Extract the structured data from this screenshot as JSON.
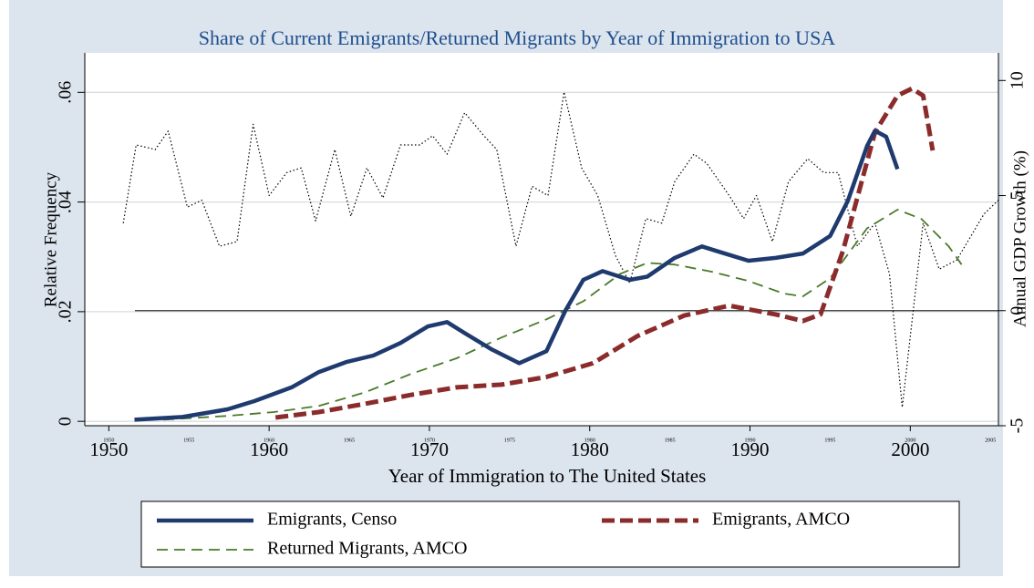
{
  "chart_data": {
    "type": "line",
    "title": "Share of Current Emigrants/Returned Migrants by Year of Immigration to USA",
    "xlabel": "Year of Immigration to The United States",
    "ylabel": "Relative Frequency",
    "y2label": "Annual GDP Growth (%)",
    "xlim": [
      1948.5,
      2005.5
    ],
    "xticks": [
      1950,
      1960,
      1970,
      1980,
      1990,
      2000
    ],
    "xminor_ticks": [
      1950,
      1955,
      1960,
      1965,
      1970,
      1975,
      1980,
      1985,
      1990,
      1995,
      2000,
      2005
    ],
    "ylim": [
      -0.0008,
      0.0672
    ],
    "yticks": [
      0,
      {
        "value": 0.02,
        "label": ".02"
      },
      {
        "value": 0.04,
        "label": ".04"
      },
      {
        "value": 0.06,
        "label": ".06"
      }
    ],
    "y2lim": [
      -5,
      11.2
    ],
    "y2ticks": [
      -5,
      0,
      5,
      10
    ],
    "y2_zero_line": true,
    "grid": true,
    "legend": "bottom",
    "series": [
      {
        "name": "Emigrants, Censo",
        "color": "#1f3a6e",
        "line_style": "solid",
        "x": [
          1951.6,
          1954.6,
          1957.4,
          1959.1,
          1961.4,
          1963.1,
          1964.8,
          1966.5,
          1968.2,
          1969.9,
          1971.1,
          1972.2,
          1973.9,
          1975.6,
          1977.3,
          1978.5,
          1979.6,
          1980.8,
          1982.5,
          1983.6,
          1985.3,
          1987.0,
          1988.1,
          1989.9,
          1991.6,
          1993.3,
          1995.0,
          1996.1,
          1997.3,
          1997.8,
          1998.5,
          1999.2
        ],
        "values": [
          0.0003,
          0.0008,
          0.0022,
          0.0037,
          0.0062,
          0.009,
          0.0108,
          0.012,
          0.0143,
          0.0173,
          0.0181,
          0.0161,
          0.0131,
          0.0106,
          0.0128,
          0.0203,
          0.0258,
          0.0274,
          0.0258,
          0.0264,
          0.0298,
          0.0319,
          0.0309,
          0.0293,
          0.0298,
          0.0306,
          0.0338,
          0.0402,
          0.0502,
          0.053,
          0.0519,
          0.046
        ]
      },
      {
        "name": "Emigrants, AMCO",
        "color": "#8b2b2b",
        "line_style": "dashed",
        "x": [
          1960.4,
          1963.1,
          1966.0,
          1968.8,
          1971.7,
          1974.5,
          1977.3,
          1980.2,
          1983.0,
          1985.9,
          1988.7,
          1991.6,
          1993.3,
          1994.4,
          1995.8,
          1997.8,
          1999.2,
          2000.1,
          2000.8,
          2001.4
        ],
        "values": [
          0.0007,
          0.0017,
          0.0032,
          0.0048,
          0.0062,
          0.0067,
          0.0081,
          0.0106,
          0.0156,
          0.0193,
          0.0211,
          0.0195,
          0.0183,
          0.0195,
          0.0311,
          0.0527,
          0.0594,
          0.0607,
          0.0594,
          0.0494
        ]
      },
      {
        "name": "Returned Migrants, AMCO",
        "color": "#4a7a2a",
        "line_style": "longdash",
        "x": [
          1953.4,
          1957.4,
          1960.3,
          1963.1,
          1966.0,
          1968.8,
          1971.7,
          1974.5,
          1977.3,
          1979.6,
          1981.9,
          1983.6,
          1985.3,
          1987.6,
          1989.9,
          1992.1,
          1993.3,
          1995.0,
          1997.3,
          1999.2,
          2000.7,
          2002.4,
          2003.2
        ],
        "values": [
          0.0003,
          0.001,
          0.0017,
          0.0028,
          0.0053,
          0.0086,
          0.0115,
          0.0153,
          0.0186,
          0.0219,
          0.0269,
          0.0289,
          0.0286,
          0.0273,
          0.0256,
          0.0233,
          0.0228,
          0.0261,
          0.0352,
          0.0386,
          0.0369,
          0.0319,
          0.0286
        ]
      },
      {
        "color": "#000000",
        "line_style": "dotted",
        "axis": "y2",
        "x": [
          1950.9,
          1951.7,
          1952.9,
          1953.7,
          1954.9,
          1955.8,
          1956.9,
          1958.0,
          1959.0,
          1960.0,
          1961.1,
          1962.0,
          1962.9,
          1964.1,
          1965.1,
          1966.1,
          1967.1,
          1968.2,
          1969.4,
          1970.2,
          1971.1,
          1972.2,
          1973.4,
          1974.2,
          1975.4,
          1976.4,
          1977.4,
          1978.4,
          1979.5,
          1980.5,
          1981.6,
          1982.5,
          1983.5,
          1984.5,
          1985.3,
          1986.5,
          1987.3,
          1988.7,
          1989.6,
          1990.4,
          1991.4,
          1992.4,
          1993.6,
          1994.6,
          1995.5,
          1996.7,
          1997.8,
          1998.7,
          1999.5,
          2000.8,
          2001.8,
          2002.9,
          2004.6,
          2005.5
        ],
        "values": [
          3.8,
          7.2,
          7.0,
          7.8,
          4.5,
          4.8,
          2.8,
          3.0,
          8.1,
          5.0,
          6.0,
          6.2,
          3.9,
          7.0,
          4.1,
          6.2,
          4.9,
          7.2,
          7.2,
          7.6,
          6.8,
          8.6,
          7.6,
          7.0,
          2.8,
          5.4,
          5.0,
          9.5,
          6.2,
          5.0,
          2.4,
          1.2,
          4.0,
          3.8,
          5.6,
          6.8,
          6.4,
          5.0,
          4.0,
          5.0,
          3.0,
          5.6,
          6.6,
          6.0,
          6.0,
          2.8,
          3.8,
          1.6,
          -4.2,
          3.8,
          1.8,
          2.2,
          4.2,
          4.8
        ]
      }
    ]
  }
}
